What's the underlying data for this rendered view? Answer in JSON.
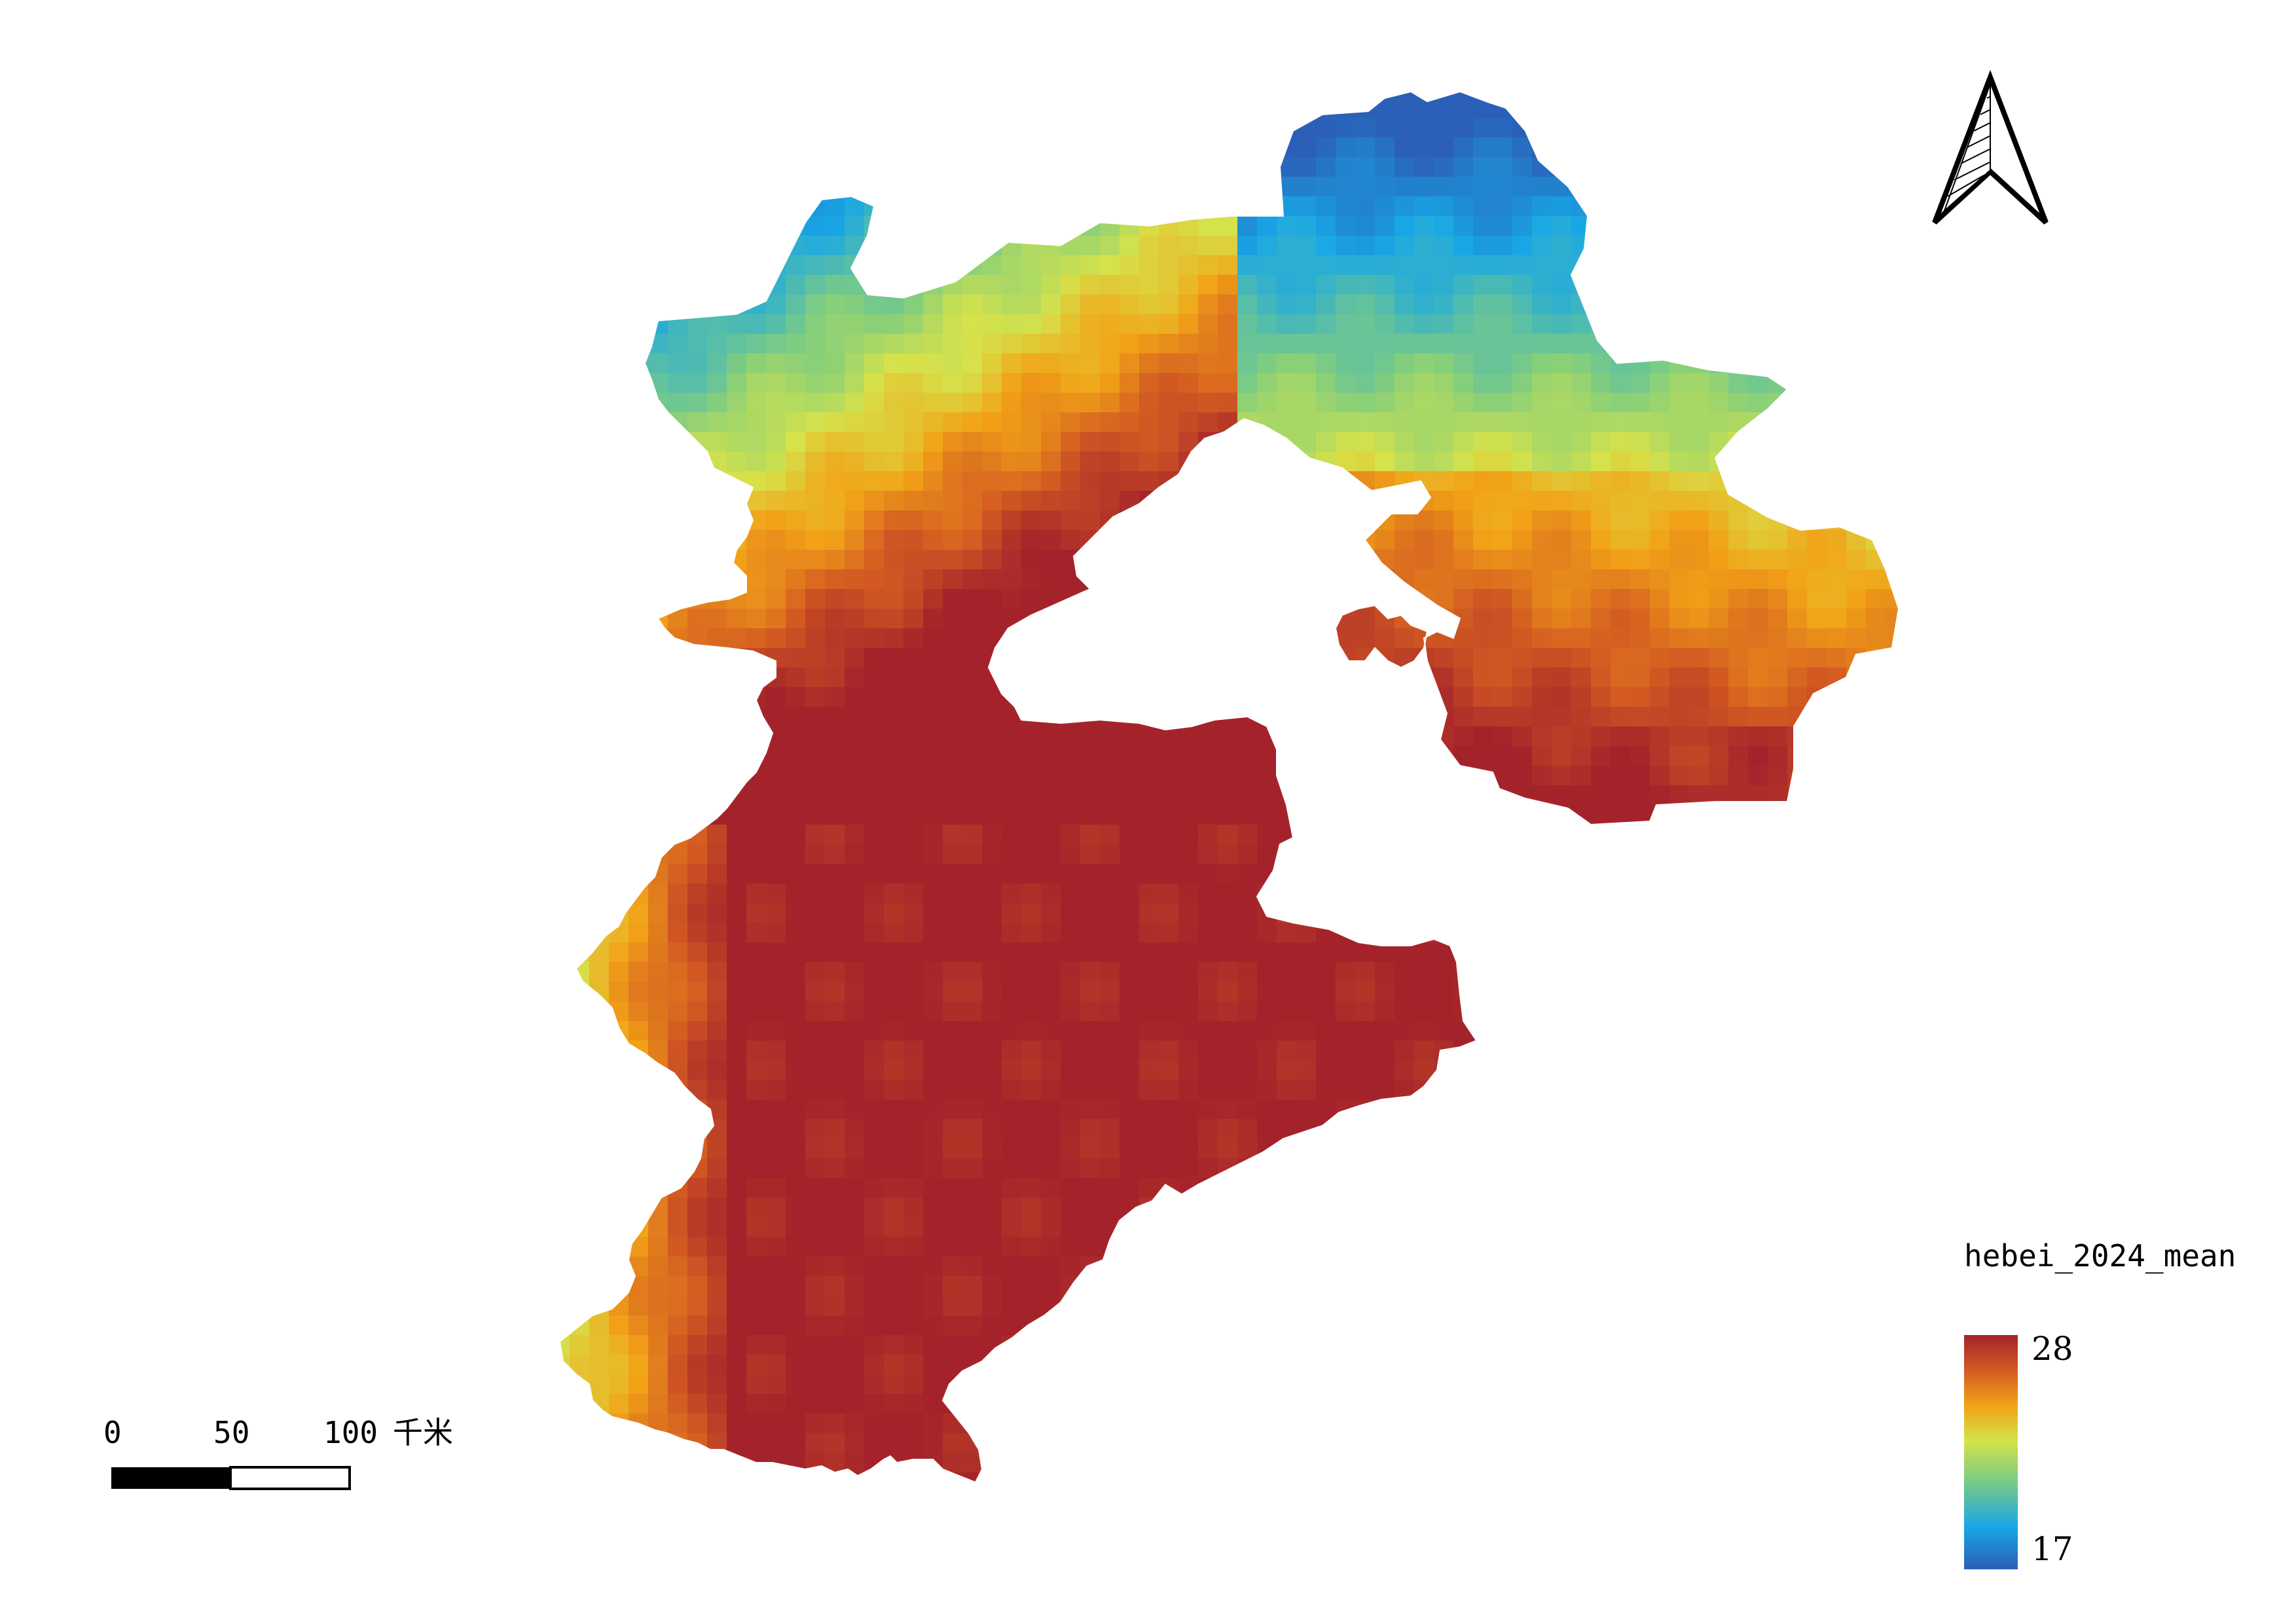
{
  "map": {
    "variable": "hebei_2024_mean"
  },
  "legend": {
    "title": "hebei_2024_mean",
    "max_label": "28",
    "min_label": "17",
    "colors": [
      "#2b5fb8",
      "#18a7e6",
      "#86cf7a",
      "#d6e24a",
      "#f2a217",
      "#d25a22",
      "#a4232b"
    ]
  },
  "scale_bar": {
    "labels": [
      "0",
      "50",
      "100"
    ],
    "unit": "千米"
  },
  "north_arrow": {
    "icon": "north-arrow-icon"
  },
  "colors": {
    "background": "#ffffff",
    "high": "#a4232b",
    "low": "#2b5fb8"
  }
}
